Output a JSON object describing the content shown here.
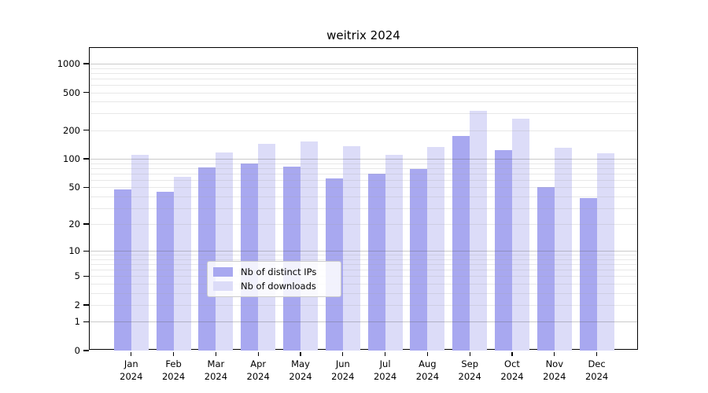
{
  "title": "weitrix 2024",
  "chart_data": {
    "type": "bar",
    "title": "weitrix 2024",
    "categories": [
      "Jan\n2024",
      "Feb\n2024",
      "Mar\n2024",
      "Apr\n2024",
      "May\n2024",
      "Jun\n2024",
      "Jul\n2024",
      "Aug\n2024",
      "Sep\n2024",
      "Oct\n2024",
      "Nov\n2024",
      "Dec\n2024"
    ],
    "series": [
      {
        "name": "Nb of distinct IPs",
        "color": "#a8a8f0",
        "values": [
          47,
          45,
          81,
          90,
          83,
          62,
          70,
          78,
          174,
          124,
          50,
          38
        ]
      },
      {
        "name": "Nb of downloads",
        "color": "#dcdcf8",
        "values": [
          110,
          65,
          117,
          144,
          152,
          136,
          110,
          133,
          320,
          265,
          130,
          114
        ]
      }
    ],
    "xlabel": "",
    "ylabel": "",
    "yscale": "log1p",
    "ylim": [
      0,
      1460
    ],
    "ytick_labels": [
      0,
      1,
      2,
      5,
      10,
      20,
      50,
      100,
      200,
      500,
      1000
    ],
    "grid": true,
    "legend_position": "lower center"
  }
}
